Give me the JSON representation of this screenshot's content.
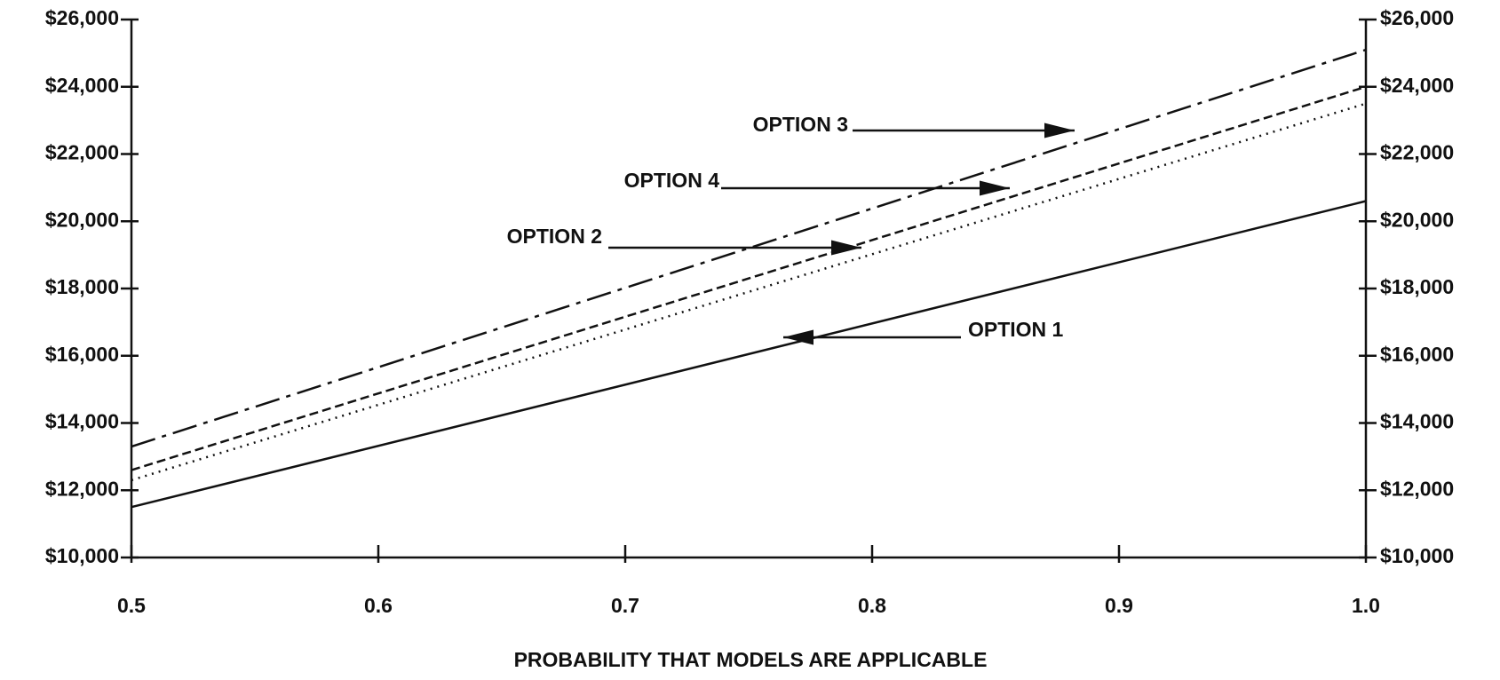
{
  "chart_data": {
    "type": "line",
    "x_label": "PROBABILITY THAT MODELS ARE APPLICABLE",
    "x": [
      0.5,
      1
    ],
    "series": [
      {
        "name": "OPTION 1",
        "color": "#111111",
        "linestyle": "solid",
        "values": [
          11500,
          20600
        ]
      },
      {
        "name": "OPTION 2",
        "color": "#111111",
        "linestyle": "dotted",
        "values": [
          12300,
          23500
        ]
      },
      {
        "name": "OPTION 4",
        "color": "#111111",
        "linestyle": "dashed",
        "values": [
          12600,
          24000
        ]
      },
      {
        "name": "OPTION 3",
        "color": "#111111",
        "linestyle": "dashdot",
        "values": [
          13300,
          25100
        ]
      }
    ],
    "xlim": [
      0.5,
      1
    ],
    "xticks": [
      0.5,
      0.6,
      0.7,
      0.8,
      0.9,
      {
        "value": 1,
        "label": "1.0"
      }
    ],
    "ylim": [
      10000,
      26000
    ],
    "yticks": [
      {
        "value": 10000,
        "label": "$10,000"
      },
      {
        "value": 12000,
        "label": "$12,000"
      },
      {
        "value": 14000,
        "label": "$14,000"
      },
      {
        "value": 16000,
        "label": "$16,000"
      },
      {
        "value": 18000,
        "label": "$18,000"
      },
      {
        "value": 20000,
        "label": "$20,000"
      },
      {
        "value": 22000,
        "label": "$22,000"
      },
      {
        "value": 24000,
        "label": "$24,000"
      },
      {
        "value": 26000,
        "label": "$26,000"
      }
    ],
    "grid": false
  }
}
